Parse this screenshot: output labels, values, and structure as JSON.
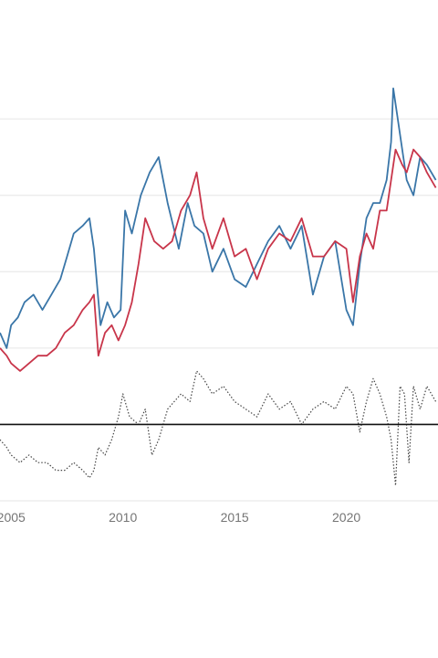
{
  "chart_data": {
    "type": "line",
    "title": "",
    "xlabel": "",
    "ylabel": "",
    "x_ticks": [
      "2005",
      "2010",
      "2015",
      "2020"
    ],
    "x_tick_values": [
      2005,
      2010,
      2015,
      2020
    ],
    "xlim": [
      2004.5,
      2024.1
    ],
    "ylim": [
      -1.0,
      4.6
    ],
    "gridlines": [
      1,
      2,
      3,
      4
    ],
    "zero_line": 0,
    "grid": true,
    "legend": "none",
    "colors": {
      "blue": "#3a76a8",
      "red": "#c8354a",
      "diff": "#444444",
      "zero": "#111111",
      "grid": "#e6e6e6"
    },
    "series": [
      {
        "color": "#3a76a8",
        "style": "solid",
        "x": [
          2004.5,
          2004.8,
          2005.0,
          2005.3,
          2005.6,
          2006.0,
          2006.4,
          2006.8,
          2007.2,
          2007.5,
          2007.8,
          2008.2,
          2008.5,
          2008.7,
          2009.0,
          2009.3,
          2009.6,
          2009.9,
          2010.1,
          2010.4,
          2010.8,
          2011.2,
          2011.6,
          2012.0,
          2012.5,
          2012.9,
          2013.2,
          2013.6,
          2014.0,
          2014.5,
          2015.0,
          2015.5,
          2016.0,
          2016.5,
          2017.0,
          2017.5,
          2018.0,
          2018.5,
          2019.0,
          2019.5,
          2020.0,
          2020.3,
          2020.6,
          2020.9,
          2021.2,
          2021.5,
          2021.8,
          2022.0,
          2022.1,
          2022.3,
          2022.5,
          2022.7,
          2023.0,
          2023.3,
          2023.6,
          2024.0
        ],
        "y": [
          1.2,
          1.0,
          1.3,
          1.4,
          1.6,
          1.7,
          1.5,
          1.7,
          1.9,
          2.2,
          2.5,
          2.6,
          2.7,
          2.3,
          1.3,
          1.6,
          1.4,
          1.5,
          2.8,
          2.5,
          3.0,
          3.3,
          3.5,
          2.9,
          2.3,
          2.9,
          2.6,
          2.5,
          2.0,
          2.3,
          1.9,
          1.8,
          2.1,
          2.4,
          2.6,
          2.3,
          2.6,
          1.7,
          2.2,
          2.4,
          1.5,
          1.3,
          2.1,
          2.7,
          2.9,
          2.9,
          3.2,
          3.7,
          4.4,
          4.0,
          3.6,
          3.2,
          3.0,
          3.5,
          3.4,
          3.2
        ]
      },
      {
        "color": "#c8354a",
        "style": "solid",
        "x": [
          2004.5,
          2004.8,
          2005.0,
          2005.4,
          2005.8,
          2006.2,
          2006.6,
          2007.0,
          2007.4,
          2007.8,
          2008.2,
          2008.5,
          2008.7,
          2008.9,
          2009.2,
          2009.5,
          2009.8,
          2010.1,
          2010.4,
          2010.7,
          2011.0,
          2011.4,
          2011.8,
          2012.2,
          2012.6,
          2013.0,
          2013.3,
          2013.6,
          2014.0,
          2014.5,
          2015.0,
          2015.5,
          2016.0,
          2016.5,
          2017.0,
          2017.5,
          2018.0,
          2018.5,
          2019.0,
          2019.5,
          2020.0,
          2020.3,
          2020.6,
          2020.9,
          2021.2,
          2021.5,
          2021.8,
          2022.0,
          2022.2,
          2022.5,
          2022.7,
          2023.0,
          2023.3,
          2023.6,
          2024.0
        ],
        "y": [
          1.0,
          0.9,
          0.8,
          0.7,
          0.8,
          0.9,
          0.9,
          1.0,
          1.2,
          1.3,
          1.5,
          1.6,
          1.7,
          0.9,
          1.2,
          1.3,
          1.1,
          1.3,
          1.6,
          2.1,
          2.7,
          2.4,
          2.3,
          2.4,
          2.8,
          3.0,
          3.3,
          2.7,
          2.3,
          2.7,
          2.2,
          2.3,
          1.9,
          2.3,
          2.5,
          2.4,
          2.7,
          2.2,
          2.2,
          2.4,
          2.3,
          1.6,
          2.2,
          2.5,
          2.3,
          2.8,
          2.8,
          3.2,
          3.6,
          3.4,
          3.3,
          3.6,
          3.5,
          3.3,
          3.1
        ]
      },
      {
        "color": "#444444",
        "style": "dotted",
        "x": [
          2004.5,
          2004.8,
          2005.0,
          2005.4,
          2005.8,
          2006.2,
          2006.6,
          2007.0,
          2007.4,
          2007.8,
          2008.2,
          2008.5,
          2008.7,
          2008.9,
          2009.2,
          2009.5,
          2009.8,
          2010.0,
          2010.3,
          2010.7,
          2011.0,
          2011.3,
          2011.6,
          2012.0,
          2012.3,
          2012.6,
          2013.0,
          2013.3,
          2013.6,
          2014.0,
          2014.5,
          2015.0,
          2015.5,
          2016.0,
          2016.5,
          2017.0,
          2017.5,
          2018.0,
          2018.5,
          2019.0,
          2019.5,
          2020.0,
          2020.3,
          2020.6,
          2020.9,
          2021.2,
          2021.5,
          2021.8,
          2022.0,
          2022.2,
          2022.4,
          2022.6,
          2022.8,
          2023.0,
          2023.3,
          2023.6,
          2024.0
        ],
        "y": [
          -0.2,
          -0.3,
          -0.4,
          -0.5,
          -0.4,
          -0.5,
          -0.5,
          -0.6,
          -0.6,
          -0.5,
          -0.6,
          -0.7,
          -0.6,
          -0.3,
          -0.4,
          -0.2,
          0.1,
          0.4,
          0.1,
          0.0,
          0.2,
          -0.4,
          -0.2,
          0.2,
          0.3,
          0.4,
          0.3,
          0.7,
          0.6,
          0.4,
          0.5,
          0.3,
          0.2,
          0.1,
          0.4,
          0.2,
          0.3,
          0.0,
          0.2,
          0.3,
          0.2,
          0.5,
          0.4,
          -0.1,
          0.3,
          0.6,
          0.4,
          0.1,
          -0.2,
          -0.8,
          0.5,
          0.4,
          -0.5,
          0.5,
          0.2,
          0.5,
          0.3
        ]
      }
    ]
  }
}
